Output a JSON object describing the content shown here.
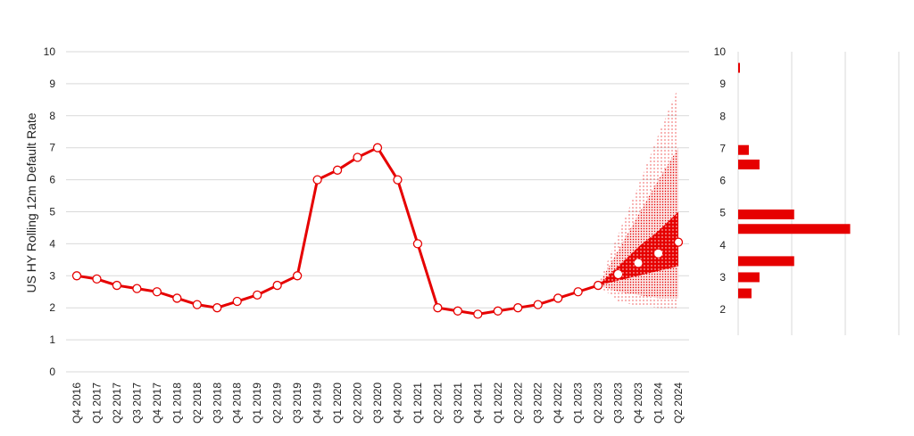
{
  "colors": {
    "accent": "#e60000",
    "grid": "#d9d9d9",
    "text": "#222222"
  },
  "chart_data": [
    {
      "type": "line",
      "title": "",
      "xlabel": "",
      "ylabel": "US HY Rolling 12m Default Rate",
      "ylim": [
        0,
        10
      ],
      "yticks": [
        "0",
        "1",
        "2",
        "3",
        "4",
        "5",
        "6",
        "7",
        "8",
        "9",
        "10"
      ],
      "grid": true,
      "legend": "none",
      "categories": [
        "Q4 2016",
        "Q1 2017",
        "Q2 2017",
        "Q3 2017",
        "Q4 2017",
        "Q1 2018",
        "Q2 2018",
        "Q3 2018",
        "Q4 2018",
        "Q1 2019",
        "Q2 2019",
        "Q3 2019",
        "Q4 2019",
        "Q1 2020",
        "Q2 2020",
        "Q3 2020",
        "Q4 2020",
        "Q1 2021",
        "Q2 2021",
        "Q3 2021",
        "Q4 2021",
        "Q1 2022",
        "Q2 2022",
        "Q3 2022",
        "Q4 2022",
        "Q1 2023",
        "Q2 2023",
        "Q3 2023",
        "Q4 2023",
        "Q1 2024",
        "Q2 2024"
      ],
      "series": [
        {
          "values": [
            3.0,
            2.9,
            2.7,
            2.6,
            2.5,
            2.3,
            2.1,
            2.0,
            2.2,
            2.4,
            2.7,
            3.0,
            6.0,
            6.3,
            6.7,
            7.0,
            6.0,
            4.0,
            2.0,
            1.9,
            1.8,
            1.9,
            2.0,
            2.1,
            2.3,
            2.5,
            2.7,
            null,
            null,
            null,
            null
          ]
        },
        {
          "values": [
            null,
            null,
            null,
            null,
            null,
            null,
            null,
            null,
            null,
            null,
            null,
            null,
            null,
            null,
            null,
            null,
            null,
            null,
            null,
            null,
            null,
            null,
            null,
            null,
            null,
            null,
            2.7,
            3.05,
            3.4,
            3.7,
            4.05
          ]
        }
      ],
      "forecast_bands": {
        "start": "Q2 2023",
        "categories": [
          "Q2 2023",
          "Q3 2023",
          "Q4 2023",
          "Q1 2024",
          "Q2 2024"
        ],
        "outer": {
          "low": [
            2.7,
            2.2,
            2.05,
            2.0,
            2.0
          ],
          "high": [
            2.7,
            4.3,
            5.8,
            7.4,
            8.9
          ]
        },
        "middle": {
          "low": [
            2.7,
            2.5,
            2.4,
            2.3,
            2.3
          ],
          "high": [
            2.7,
            3.8,
            4.9,
            6.0,
            7.0
          ]
        },
        "inner": {
          "low": [
            2.7,
            2.7,
            2.7,
            2.85,
            2.75
          ],
          "high": [
            2.7,
            3.5,
            4.1,
            4.6,
            5.9
          ]
        },
        "core": {
          "low": [
            2.7,
            2.85,
            3.0,
            3.15,
            3.3
          ],
          "high": [
            2.7,
            3.3,
            3.9,
            4.4,
            5.0
          ]
        }
      }
    },
    {
      "type": "bar",
      "orientation": "horizontal",
      "ylim": [
        1.2,
        10
      ],
      "yticks": [
        "2",
        "3",
        "4",
        "5",
        "6",
        "7",
        "8",
        "9",
        "10"
      ],
      "grid": true,
      "bars": [
        {
          "y": 9.5,
          "value": 1
        },
        {
          "y": 6.95,
          "value": 8
        },
        {
          "y": 6.5,
          "value": 16
        },
        {
          "y": 4.95,
          "value": 42
        },
        {
          "y": 4.5,
          "value": 84
        },
        {
          "y": 3.5,
          "value": 42
        },
        {
          "y": 3.0,
          "value": 16
        },
        {
          "y": 2.5,
          "value": 10
        }
      ],
      "xlim": [
        0,
        100
      ]
    }
  ]
}
